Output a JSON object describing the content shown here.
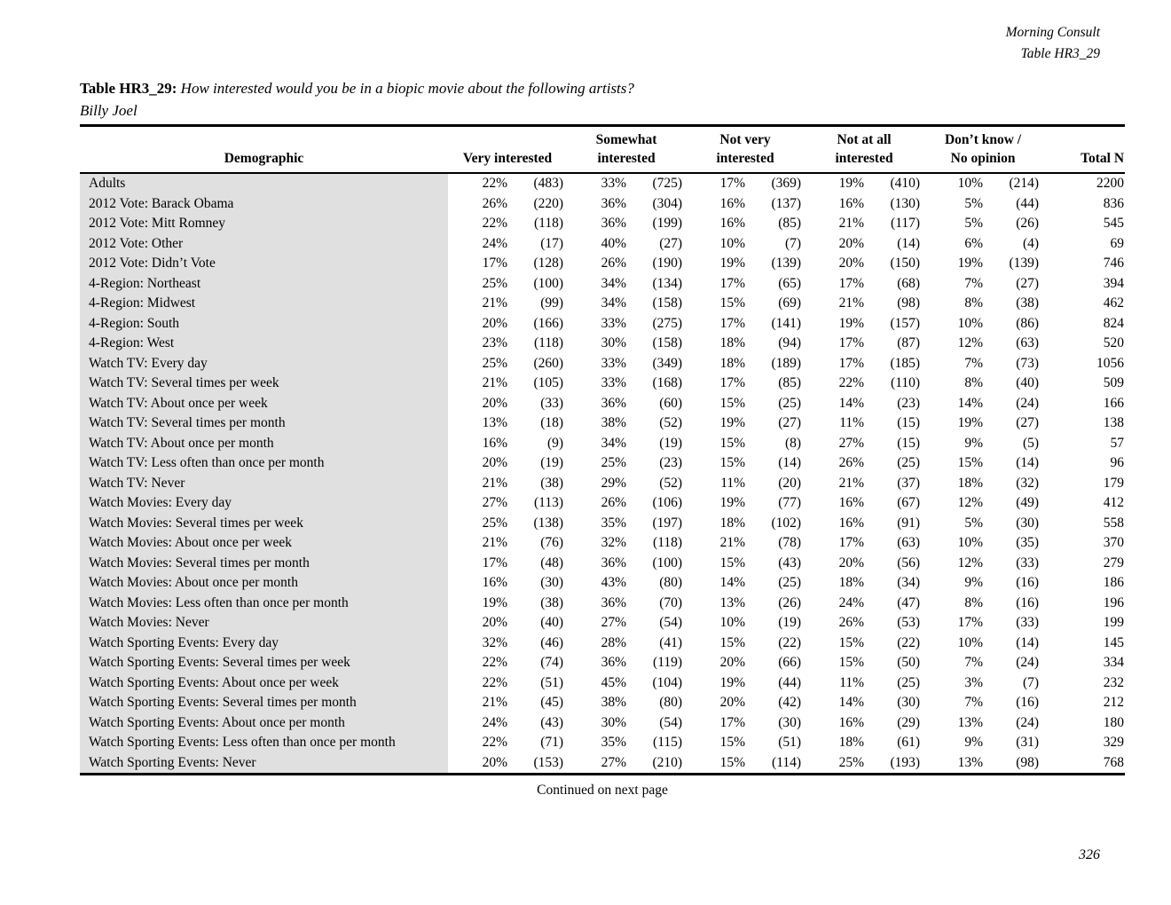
{
  "meta": {
    "source_line1": "Morning Consult",
    "source_line2": "Table HR3_29"
  },
  "title": {
    "label": "Table HR3_29:",
    "question": "How interested would you be in a biopic movie about the following artists?",
    "subject": "Billy Joel"
  },
  "colors": {
    "demographic_band": "#e0e0e0",
    "rule": "#000000"
  },
  "table": {
    "header": {
      "demographic": "Demographic",
      "very_line1": "",
      "very_line2": "Very interested",
      "somewhat_line1": "Somewhat",
      "somewhat_line2": "interested",
      "not_very_line1": "Not very",
      "not_very_line2": "interested",
      "not_at_all_line1": "Not at all",
      "not_at_all_line2": "interested",
      "dont_know_line1": "Don’t know /",
      "dont_know_line2": "No opinion",
      "total_line1": "",
      "total_line2": "Total N"
    },
    "rows": [
      [
        "Adults",
        "22%",
        "(483)",
        "33%",
        "(725)",
        "17%",
        "(369)",
        "19%",
        "(410)",
        "10%",
        "(214)",
        "2200"
      ],
      [
        "2012 Vote: Barack Obama",
        "26%",
        "(220)",
        "36%",
        "(304)",
        "16%",
        "(137)",
        "16%",
        "(130)",
        "5%",
        "(44)",
        "836"
      ],
      [
        "2012 Vote: Mitt Romney",
        "22%",
        "(118)",
        "36%",
        "(199)",
        "16%",
        "(85)",
        "21%",
        "(117)",
        "5%",
        "(26)",
        "545"
      ],
      [
        "2012 Vote: Other",
        "24%",
        "(17)",
        "40%",
        "(27)",
        "10%",
        "(7)",
        "20%",
        "(14)",
        "6%",
        "(4)",
        "69"
      ],
      [
        "2012 Vote: Didn’t Vote",
        "17%",
        "(128)",
        "26%",
        "(190)",
        "19%",
        "(139)",
        "20%",
        "(150)",
        "19%",
        "(139)",
        "746"
      ],
      [
        "4-Region: Northeast",
        "25%",
        "(100)",
        "34%",
        "(134)",
        "17%",
        "(65)",
        "17%",
        "(68)",
        "7%",
        "(27)",
        "394"
      ],
      [
        "4-Region: Midwest",
        "21%",
        "(99)",
        "34%",
        "(158)",
        "15%",
        "(69)",
        "21%",
        "(98)",
        "8%",
        "(38)",
        "462"
      ],
      [
        "4-Region: South",
        "20%",
        "(166)",
        "33%",
        "(275)",
        "17%",
        "(141)",
        "19%",
        "(157)",
        "10%",
        "(86)",
        "824"
      ],
      [
        "4-Region: West",
        "23%",
        "(118)",
        "30%",
        "(158)",
        "18%",
        "(94)",
        "17%",
        "(87)",
        "12%",
        "(63)",
        "520"
      ],
      [
        "Watch TV: Every day",
        "25%",
        "(260)",
        "33%",
        "(349)",
        "18%",
        "(189)",
        "17%",
        "(185)",
        "7%",
        "(73)",
        "1056"
      ],
      [
        "Watch TV: Several times per week",
        "21%",
        "(105)",
        "33%",
        "(168)",
        "17%",
        "(85)",
        "22%",
        "(110)",
        "8%",
        "(40)",
        "509"
      ],
      [
        "Watch TV: About once per week",
        "20%",
        "(33)",
        "36%",
        "(60)",
        "15%",
        "(25)",
        "14%",
        "(23)",
        "14%",
        "(24)",
        "166"
      ],
      [
        "Watch TV: Several times per month",
        "13%",
        "(18)",
        "38%",
        "(52)",
        "19%",
        "(27)",
        "11%",
        "(15)",
        "19%",
        "(27)",
        "138"
      ],
      [
        "Watch TV: About once per month",
        "16%",
        "(9)",
        "34%",
        "(19)",
        "15%",
        "(8)",
        "27%",
        "(15)",
        "9%",
        "(5)",
        "57"
      ],
      [
        "Watch TV: Less often than once per month",
        "20%",
        "(19)",
        "25%",
        "(23)",
        "15%",
        "(14)",
        "26%",
        "(25)",
        "15%",
        "(14)",
        "96"
      ],
      [
        "Watch TV: Never",
        "21%",
        "(38)",
        "29%",
        "(52)",
        "11%",
        "(20)",
        "21%",
        "(37)",
        "18%",
        "(32)",
        "179"
      ],
      [
        "Watch Movies: Every day",
        "27%",
        "(113)",
        "26%",
        "(106)",
        "19%",
        "(77)",
        "16%",
        "(67)",
        "12%",
        "(49)",
        "412"
      ],
      [
        "Watch Movies: Several times per week",
        "25%",
        "(138)",
        "35%",
        "(197)",
        "18%",
        "(102)",
        "16%",
        "(91)",
        "5%",
        "(30)",
        "558"
      ],
      [
        "Watch Movies: About once per week",
        "21%",
        "(76)",
        "32%",
        "(118)",
        "21%",
        "(78)",
        "17%",
        "(63)",
        "10%",
        "(35)",
        "370"
      ],
      [
        "Watch Movies: Several times per month",
        "17%",
        "(48)",
        "36%",
        "(100)",
        "15%",
        "(43)",
        "20%",
        "(56)",
        "12%",
        "(33)",
        "279"
      ],
      [
        "Watch Movies: About once per month",
        "16%",
        "(30)",
        "43%",
        "(80)",
        "14%",
        "(25)",
        "18%",
        "(34)",
        "9%",
        "(16)",
        "186"
      ],
      [
        "Watch Movies: Less often than once per month",
        "19%",
        "(38)",
        "36%",
        "(70)",
        "13%",
        "(26)",
        "24%",
        "(47)",
        "8%",
        "(16)",
        "196"
      ],
      [
        "Watch Movies: Never",
        "20%",
        "(40)",
        "27%",
        "(54)",
        "10%",
        "(19)",
        "26%",
        "(53)",
        "17%",
        "(33)",
        "199"
      ],
      [
        "Watch Sporting Events: Every day",
        "32%",
        "(46)",
        "28%",
        "(41)",
        "15%",
        "(22)",
        "15%",
        "(22)",
        "10%",
        "(14)",
        "145"
      ],
      [
        "Watch Sporting Events: Several times per week",
        "22%",
        "(74)",
        "36%",
        "(119)",
        "20%",
        "(66)",
        "15%",
        "(50)",
        "7%",
        "(24)",
        "334"
      ],
      [
        "Watch Sporting Events: About once per week",
        "22%",
        "(51)",
        "45%",
        "(104)",
        "19%",
        "(44)",
        "11%",
        "(25)",
        "3%",
        "(7)",
        "232"
      ],
      [
        "Watch Sporting Events: Several times per month",
        "21%",
        "(45)",
        "38%",
        "(80)",
        "20%",
        "(42)",
        "14%",
        "(30)",
        "7%",
        "(16)",
        "212"
      ],
      [
        "Watch Sporting Events: About once per month",
        "24%",
        "(43)",
        "30%",
        "(54)",
        "17%",
        "(30)",
        "16%",
        "(29)",
        "13%",
        "(24)",
        "180"
      ],
      [
        "Watch Sporting Events: Less often than once per month",
        "22%",
        "(71)",
        "35%",
        "(115)",
        "15%",
        "(51)",
        "18%",
        "(61)",
        "9%",
        "(31)",
        "329"
      ],
      [
        "Watch Sporting Events: Never",
        "20%",
        "(153)",
        "27%",
        "(210)",
        "15%",
        "(114)",
        "25%",
        "(193)",
        "13%",
        "(98)",
        "768"
      ]
    ]
  },
  "footer": {
    "continued": "Continued on next page",
    "page_number": "326"
  }
}
